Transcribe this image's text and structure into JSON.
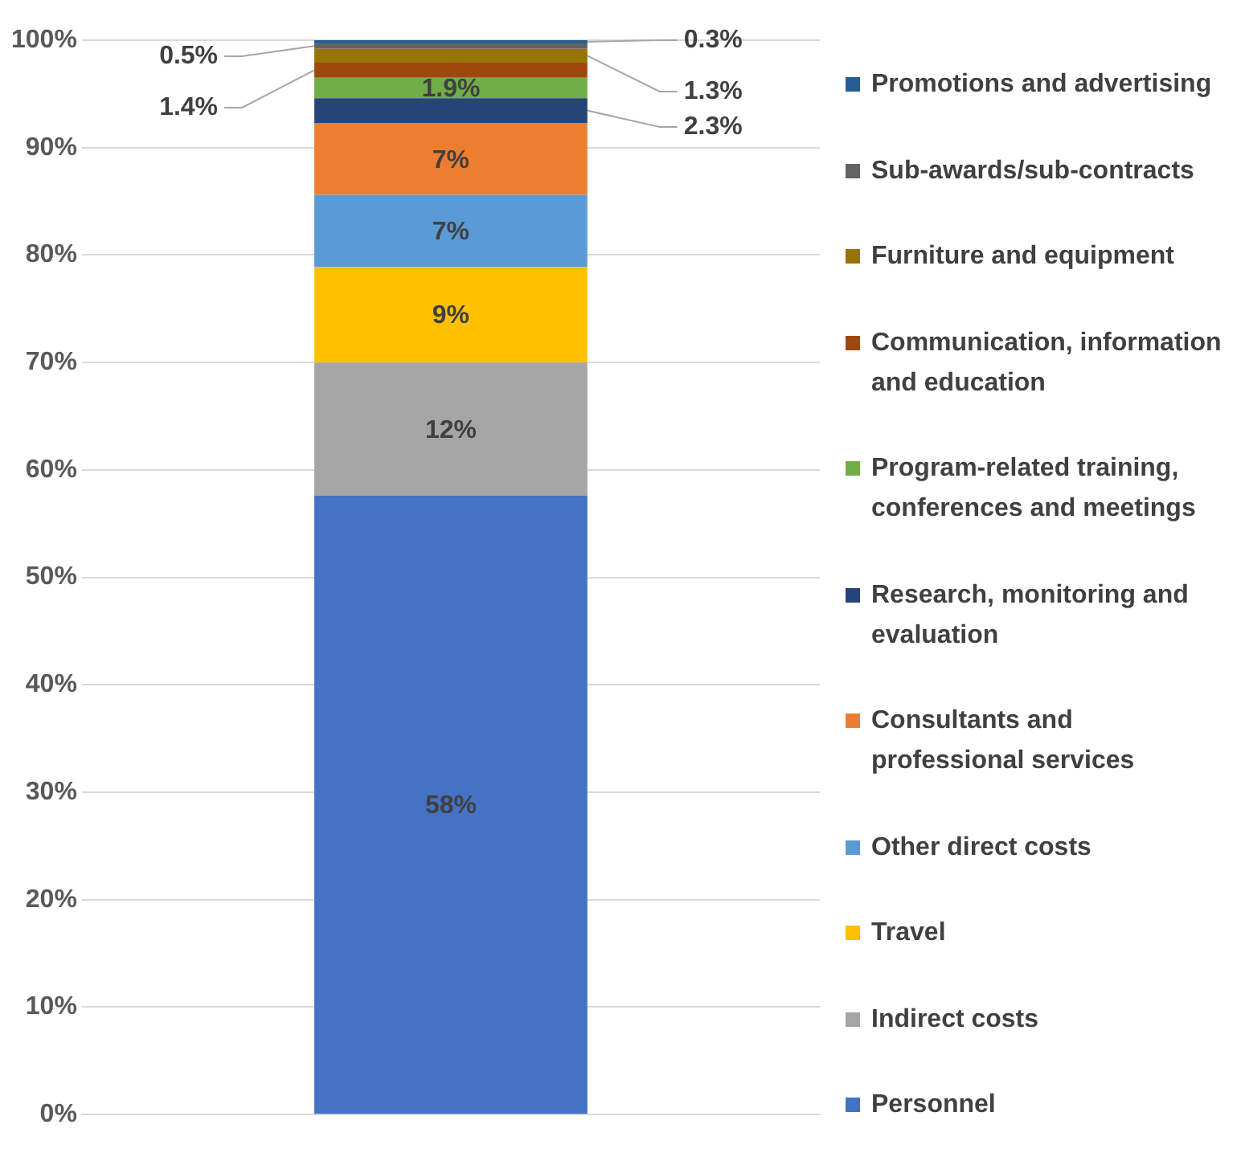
{
  "chart_data": {
    "type": "bar",
    "stacked": true,
    "categories": [
      null
    ],
    "series": [
      {
        "name": "Personnel",
        "color": "#4472c4",
        "values": [
          57.6
        ],
        "value_labels": [
          "58%"
        ]
      },
      {
        "name": "Indirect costs",
        "color": "#a5a5a5",
        "values": [
          12.4
        ],
        "value_labels": [
          "12%"
        ]
      },
      {
        "name": "Travel",
        "color": "#ffc000",
        "values": [
          8.9
        ],
        "value_labels": [
          "9%"
        ]
      },
      {
        "name": "Other direct costs",
        "color": "#5b9bd5",
        "values": [
          6.7
        ],
        "value_labels": [
          "7%"
        ]
      },
      {
        "name": "Consultants and professional services",
        "color": "#ed7d31",
        "values": [
          6.7
        ],
        "value_labels": [
          "7%"
        ]
      },
      {
        "name": "Research, monitoring and evaluation",
        "color": "#264478",
        "values": [
          2.3
        ],
        "value_labels": [
          "2.3%"
        ]
      },
      {
        "name": "Program-related training, conferences and meetings",
        "color": "#70ad47",
        "values": [
          1.9
        ],
        "value_labels": [
          "1.9%"
        ]
      },
      {
        "name": "Communication, information and education",
        "color": "#9e480e",
        "values": [
          1.4
        ],
        "value_labels": [
          "1.4%"
        ]
      },
      {
        "name": "Furniture and equipment",
        "color": "#997300",
        "values": [
          1.3
        ],
        "value_labels": [
          "1.3%"
        ]
      },
      {
        "name": "Sub-awards/sub-contracts",
        "color": "#636363",
        "values": [
          0.5
        ],
        "value_labels": [
          "0.5%"
        ]
      },
      {
        "name": "Promotions and advertising",
        "color": "#255e91",
        "values": [
          0.3
        ],
        "value_labels": [
          "0.3%"
        ]
      }
    ],
    "ylim": [
      0,
      100
    ],
    "yticks": [
      {
        "value": 0,
        "label": "0%"
      },
      {
        "value": 10,
        "label": "10%"
      },
      {
        "value": 20,
        "label": "20%"
      },
      {
        "value": 30,
        "label": "30%"
      },
      {
        "value": 40,
        "label": "40%"
      },
      {
        "value": 50,
        "label": "50%"
      },
      {
        "value": 60,
        "label": "60%"
      },
      {
        "value": 70,
        "label": "70%"
      },
      {
        "value": 80,
        "label": "80%"
      },
      {
        "value": 90,
        "label": "90%"
      },
      {
        "value": 100,
        "label": "100%"
      }
    ],
    "grid": "y",
    "legend": "right"
  }
}
